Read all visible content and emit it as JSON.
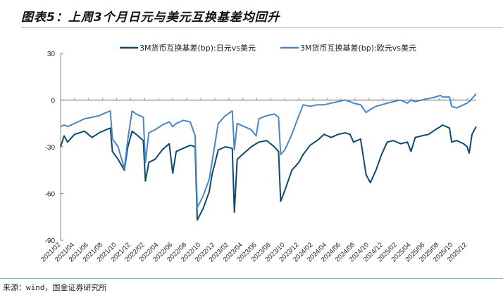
{
  "title": "图表5：上周3个月日元与美元互换基差均回升",
  "source": "来源：wind，国金证券研究所",
  "colors": {
    "jpy": "#0c4a6e",
    "eur": "#4a86c6",
    "axis": "#888888"
  },
  "chart_data": {
    "type": "line",
    "title": "图表5：上周3个月日元与美元互换基差均回升",
    "xlabel": "",
    "ylabel": "",
    "ylim": [
      -90,
      30
    ],
    "yticks": [
      30,
      0,
      -30,
      -60,
      -90
    ],
    "x_unit": "months since 2021/02",
    "xlim": [
      0,
      59.3
    ],
    "xtick_labels": [
      "2021/02",
      "2021/04",
      "2021/06",
      "2021/08",
      "2021/10",
      "2021/12",
      "2022/02",
      "2022/04",
      "2022/06",
      "2022/08",
      "2022/10",
      "2022/12",
      "2023/02",
      "2023/04",
      "2023/06",
      "2023/08",
      "2023/10",
      "2023/12",
      "2024/02",
      "2024/04",
      "2024/06",
      "2024/08",
      "2024/10",
      "2024/12",
      "2025/02",
      "2025/04",
      "2025/06",
      "2025/08",
      "2025/10",
      "2025/12"
    ],
    "legend_position": "top",
    "grid": false,
    "x": [
      0,
      0.5,
      1,
      2,
      3.4,
      4.5,
      5.5,
      6.5,
      7.1,
      7.4,
      8.2,
      9.1,
      9.6,
      10.2,
      10.8,
      11.8,
      12.1,
      12.6,
      13.5,
      14.5,
      15.5,
      16,
      16.5,
      17.5,
      18.5,
      19.2,
      19.5,
      20.3,
      21.2,
      21.6,
      22.5,
      23.5,
      24.5,
      24.8,
      25.2,
      26.2,
      27.2,
      27.9,
      28.3,
      29.4,
      30.5,
      31.1,
      31.4,
      32,
      33,
      34,
      34.6,
      35.6,
      36.6,
      37.6,
      38.6,
      39.6,
      40.6,
      41.3,
      41.8,
      42.8,
      43.6,
      44.2,
      45,
      45.8,
      46.6,
      47.5,
      48.5,
      49.5,
      50,
      50.6,
      51.5,
      52.5,
      53.5,
      54.2,
      54.5,
      55.5,
      55.8,
      56.5,
      57.5,
      58,
      58.3,
      58.7,
      59.3
    ],
    "series": [
      {
        "name": "3M货币互换基差(bp):日元vs美元",
        "color_key": "jpy",
        "values": [
          -30,
          -23,
          -27,
          -22,
          -20,
          -24,
          -21,
          -19,
          -18,
          -33,
          -38,
          -45,
          -30,
          -20,
          -22,
          -26,
          -52,
          -40,
          -38,
          -32,
          -28,
          -47,
          -33,
          -31,
          -29,
          -30,
          -77,
          -70,
          -59,
          -48,
          -32,
          -30,
          -31,
          -72,
          -38,
          -34,
          -30,
          -28,
          -27,
          -26,
          -30,
          -33,
          -65,
          -58,
          -45,
          -40,
          -35,
          -29,
          -26,
          -22,
          -24,
          -22,
          -21,
          -22,
          -27,
          -25,
          -48,
          -53,
          -45,
          -35,
          -27,
          -26,
          -28,
          -27,
          -33,
          -24,
          -23,
          -22,
          -19,
          -17,
          -16,
          -18,
          -27,
          -26,
          -28,
          -30,
          -34,
          -22,
          -17
        ]
      },
      {
        "name": "3M货币互换基差(bp):欧元vs美元",
        "color_key": "eur",
        "values": [
          -17,
          -16,
          -17,
          -15,
          -12,
          -11,
          -10,
          -8,
          -7,
          -25,
          -30,
          -44,
          -25,
          -7,
          -9,
          -11,
          -40,
          -21,
          -19,
          -16,
          -14,
          -17,
          -15,
          -13,
          -14,
          -23,
          -69,
          -62,
          -51,
          -40,
          -15,
          -10,
          -7,
          -32,
          -15,
          -17,
          -19,
          -23,
          -12,
          -10,
          -9,
          -11,
          -35,
          -32,
          -22,
          -10,
          -3,
          -4,
          -3,
          -3,
          -2,
          -1,
          0,
          -1,
          -2,
          -3,
          -8,
          -6,
          -4,
          -3,
          -2,
          -1,
          0,
          -2,
          0,
          -1,
          0,
          1,
          2,
          3,
          2,
          2,
          -4,
          -5,
          -3,
          -2,
          -1,
          1,
          4
        ]
      }
    ]
  }
}
